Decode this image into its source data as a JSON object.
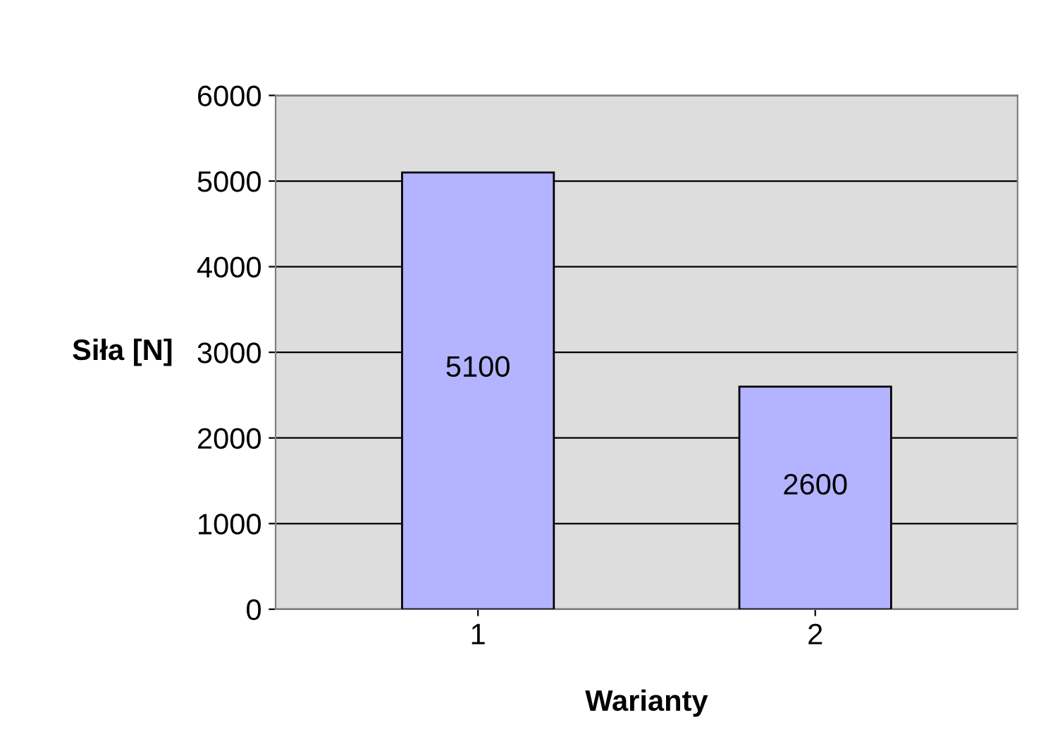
{
  "chart_data": {
    "type": "bar",
    "xlabel": "Warianty",
    "ylabel": "Siła [N]",
    "categories": [
      "1",
      "2"
    ],
    "values": [
      5100,
      2600
    ],
    "color": "#b3b3ff",
    "ylim": [
      0,
      6000
    ],
    "yticks": [
      0,
      1000,
      2000,
      3000,
      4000,
      5000,
      6000
    ],
    "grid": "y",
    "data_labels": true
  }
}
